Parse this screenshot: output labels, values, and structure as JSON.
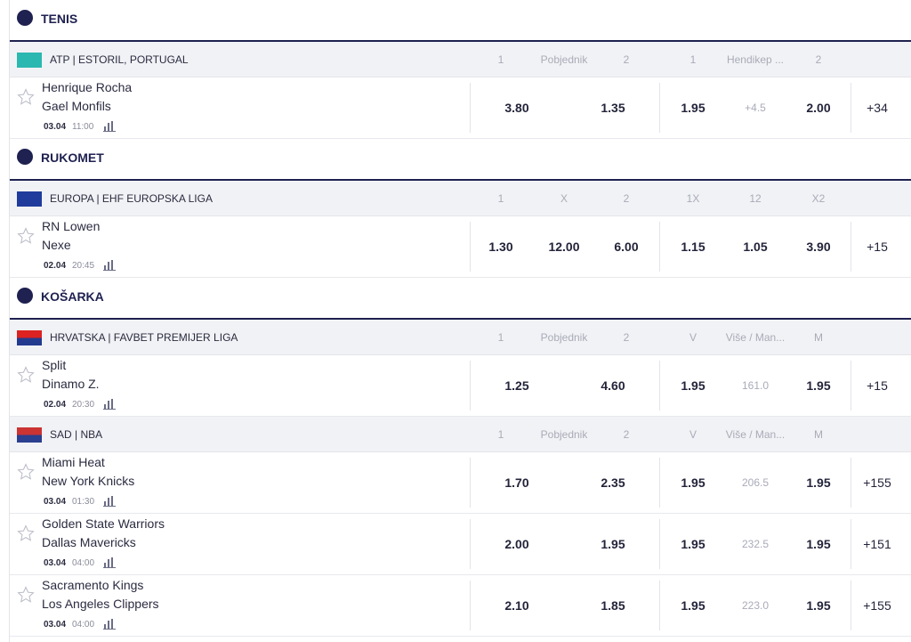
{
  "sections": [
    {
      "title": "TENIS",
      "leagues": [
        {
          "name": "ATP | ESTORIL, PORTUGAL",
          "headers": [
            "1",
            "Pobjednik",
            "2",
            "1",
            "Hendikep ...",
            "2"
          ],
          "matches": [
            {
              "home": "Henrique Rocha",
              "away": "Gael Monfils",
              "date": "03.04",
              "time": "11:00",
              "odds": [
                "3.80",
                "1.35",
                "1.95",
                "2.00"
              ],
              "line": "+4.5",
              "more": "+34"
            }
          ]
        }
      ]
    },
    {
      "title": "RUKOMET",
      "leagues": [
        {
          "name": "EUROPA | EHF EUROPSKA LIGA",
          "headers": [
            "1",
            "X",
            "2",
            "1X",
            "12",
            "X2"
          ],
          "matches": [
            {
              "home": "RN Lowen",
              "away": "Nexe",
              "date": "02.04",
              "time": "20:45",
              "odds": [
                "1.30",
                "12.00",
                "6.00",
                "1.15",
                "1.05",
                "3.90"
              ],
              "more": "+15"
            }
          ]
        }
      ]
    },
    {
      "title": "KOŠARKA",
      "leagues": [
        {
          "name": "HRVATSKA | FAVBET PREMIJER LIGA",
          "headers": [
            "1",
            "Pobjednik",
            "2",
            "V",
            "Više / Man...",
            "M"
          ],
          "matches": [
            {
              "home": "Split",
              "away": "Dinamo Z.",
              "date": "02.04",
              "time": "20:30",
              "odds": [
                "1.25",
                "4.60",
                "1.95",
                "1.95"
              ],
              "line": "161.0",
              "more": "+15"
            }
          ]
        },
        {
          "name": "SAD | NBA",
          "headers": [
            "1",
            "Pobjednik",
            "2",
            "V",
            "Više / Man...",
            "M"
          ],
          "matches": [
            {
              "home": "Miami Heat",
              "away": "New York Knicks",
              "date": "03.04",
              "time": "01:30",
              "odds": [
                "1.70",
                "2.35",
                "1.95",
                "1.95"
              ],
              "line": "206.5",
              "more": "+155"
            },
            {
              "home": "Golden State Warriors",
              "away": "Dallas Mavericks",
              "date": "03.04",
              "time": "04:00",
              "odds": [
                "2.00",
                "1.95",
                "1.95",
                "1.95"
              ],
              "line": "232.5",
              "more": "+151"
            },
            {
              "home": "Sacramento Kings",
              "away": "Los Angeles Clippers",
              "date": "03.04",
              "time": "04:00",
              "odds": [
                "2.10",
                "1.85",
                "1.95",
                "1.95"
              ],
              "line": "223.0",
              "more": "+155"
            }
          ]
        }
      ]
    }
  ]
}
